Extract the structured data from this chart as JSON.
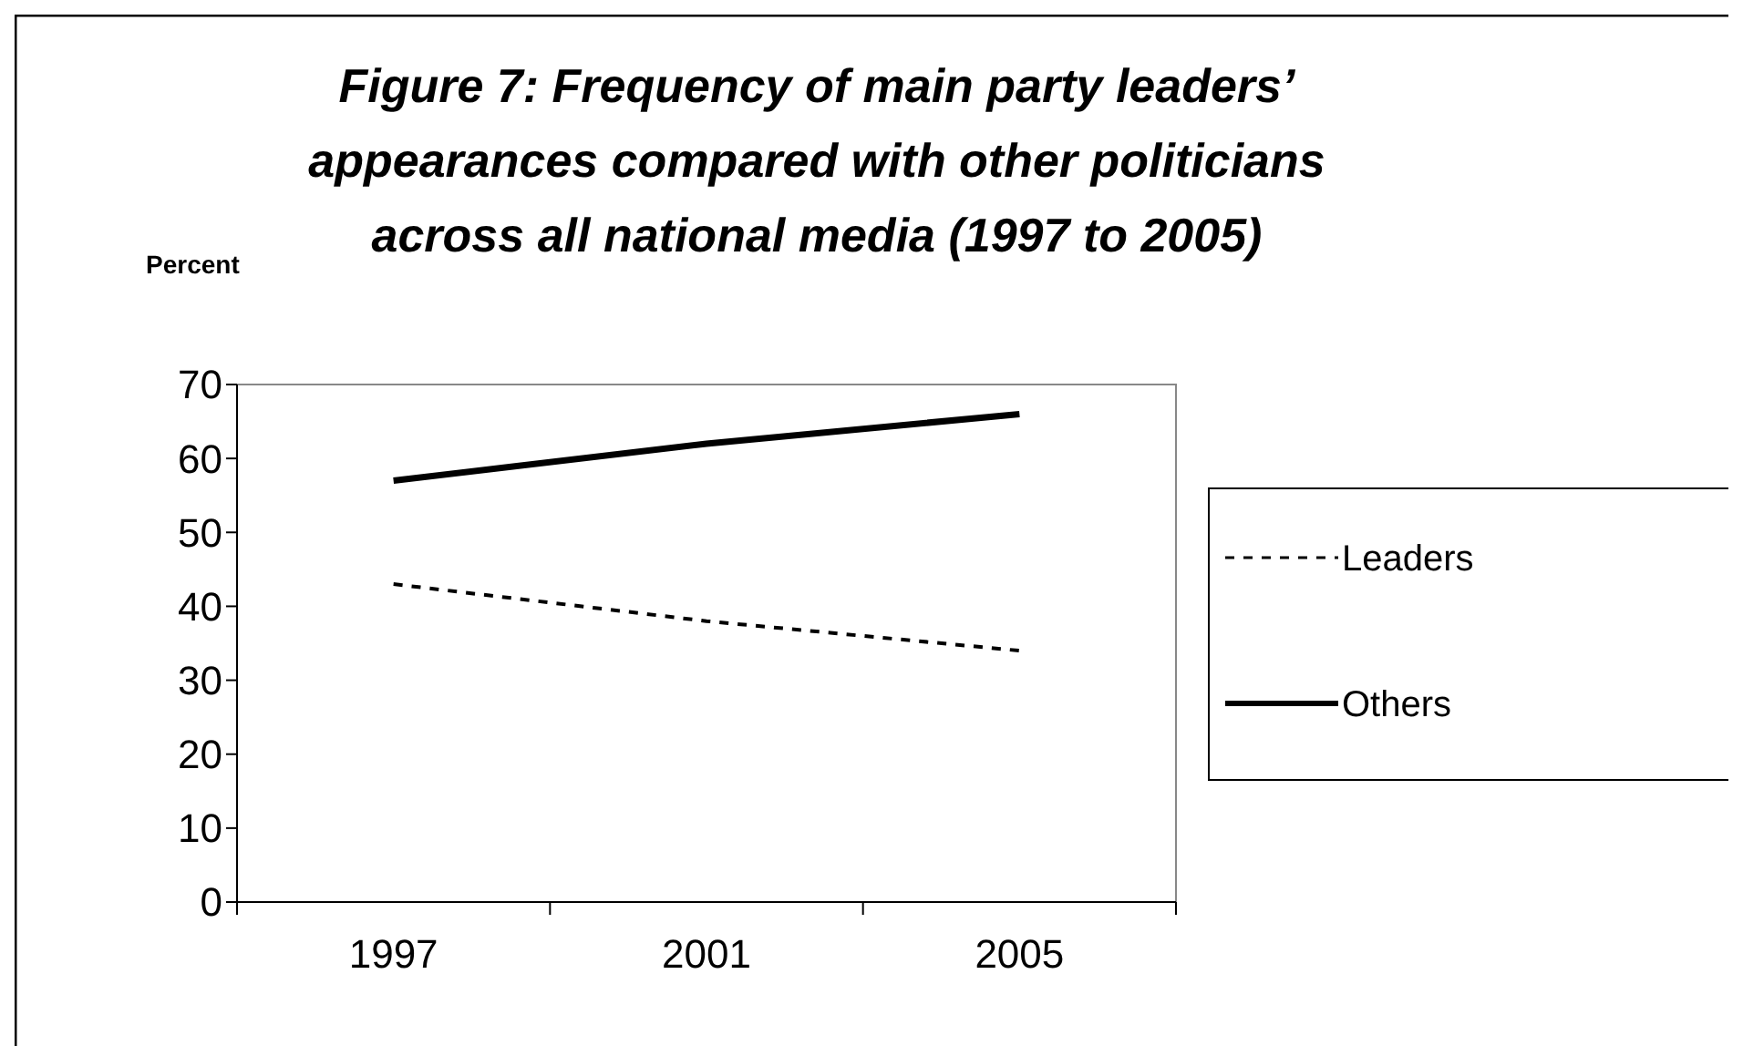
{
  "chart_data": {
    "type": "line",
    "title": "Figure 7: Frequency of main party leaders’\nappearances compared with other politicians\nacross all national media (1997 to 2005)",
    "ylabel": "Percent",
    "categories": [
      "1997",
      "2001",
      "2005"
    ],
    "series": [
      {
        "name": "Leaders",
        "color": "#000000",
        "values": [
          43,
          38,
          34
        ],
        "line_style": "dashed"
      },
      {
        "name": "Others",
        "color": "#000000",
        "values": [
          57,
          62,
          66
        ],
        "line_style": "solid"
      }
    ],
    "ylim": [
      0,
      70
    ],
    "yticks": [
      0,
      10,
      20,
      30,
      40,
      50,
      60,
      70
    ],
    "legend": "right",
    "grid": false
  }
}
